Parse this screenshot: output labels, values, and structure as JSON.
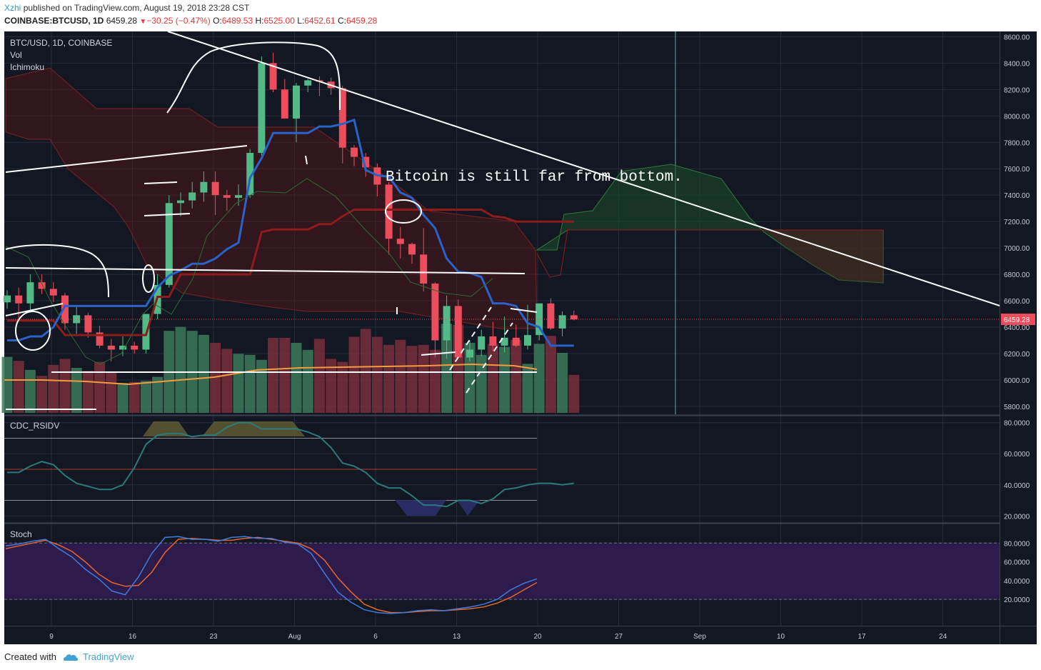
{
  "header": {
    "author": "Xzhi",
    "published_text": "published on TradingView.com, August 19, 2018 23:28 CST",
    "symbol": "COINBASE:BTCUSD, 1D",
    "price": "6459.28",
    "change": "−30.25 (−0.47%)",
    "ohlc": [
      {
        "label": "O:",
        "value": "6489.53"
      },
      {
        "label": "H:",
        "value": "6525.00"
      },
      {
        "label": "L:",
        "value": "6452.61"
      },
      {
        "label": "C:",
        "value": "6459.28"
      }
    ]
  },
  "legend": {
    "title": "BTC/USD, 1D, COINBASE",
    "vol": "Vol",
    "ichimoku": "Ichimoku",
    "rsi": "CDC_RSIDV",
    "stoch": "Stoch"
  },
  "annotation": "Bitcoin is still far from bottom.",
  "footer": {
    "created_with": "Created with",
    "brand": "TradingView"
  },
  "colors": {
    "bg": "#131722",
    "up": "#53b987",
    "down": "#eb4d5c",
    "tenkan": "#2962c9",
    "kijun": "#8e1c1c",
    "stoch_k": "#3d7be0",
    "stoch_d": "#e7652a",
    "stoch_band": "#2d1b4b",
    "rsi_line": "#2a7a7a"
  },
  "chart_data": {
    "type": "candlestick",
    "symbol": "BTC/USD",
    "interval": "1D",
    "price_ylim": [
      5740,
      8640
    ],
    "price_ticks": [
      "8600.00",
      "8400.00",
      "8200.00",
      "8000.00",
      "7800.00",
      "7600.00",
      "7400.00",
      "7200.00",
      "7000.00",
      "6800.00",
      "6600.00",
      "6400.00",
      "6200.00",
      "6000.00",
      "5800.00"
    ],
    "last_price": "6459.28",
    "x_ticks": [
      "9",
      "16",
      "23",
      "Aug",
      "6",
      "13",
      "20",
      "27",
      "Sep",
      "10",
      "17",
      "24"
    ],
    "ohlc": [
      [
        6588,
        6680,
        6540,
        6640
      ],
      [
        6640,
        6700,
        6470,
        6580
      ],
      [
        6580,
        6800,
        6510,
        6740
      ],
      [
        6740,
        6800,
        6650,
        6690
      ],
      [
        6690,
        6740,
        6590,
        6640
      ],
      [
        6640,
        6660,
        6380,
        6430
      ],
      [
        6430,
        6560,
        6350,
        6490
      ],
      [
        6490,
        6510,
        6320,
        6360
      ],
      [
        6360,
        6410,
        6240,
        6260
      ],
      [
        6260,
        6310,
        6140,
        6230
      ],
      [
        6230,
        6330,
        6180,
        6260
      ],
      [
        6260,
        6290,
        6200,
        6230
      ],
      [
        6230,
        6490,
        6200,
        6500
      ],
      [
        6500,
        6800,
        6460,
        6720
      ],
      [
        6720,
        7400,
        6700,
        7340
      ],
      [
        7340,
        7420,
        7240,
        7360
      ],
      [
        7360,
        7500,
        7300,
        7420
      ],
      [
        7420,
        7580,
        7350,
        7500
      ],
      [
        7500,
        7580,
        7250,
        7400
      ],
      [
        7400,
        7440,
        7280,
        7380
      ],
      [
        7380,
        7480,
        7320,
        7400
      ],
      [
        7400,
        7750,
        7380,
        7720
      ],
      [
        7720,
        8450,
        7700,
        8400
      ],
      [
        8400,
        8480,
        8180,
        8200
      ],
      [
        8200,
        8280,
        7980,
        7980
      ],
      [
        7980,
        8250,
        7800,
        8230
      ],
      [
        8230,
        8280,
        8180,
        8270
      ],
      [
        8270,
        8300,
        8150,
        8260
      ],
      [
        8260,
        8290,
        8160,
        8210
      ],
      [
        8210,
        8230,
        7640,
        7760
      ],
      [
        7760,
        7780,
        7620,
        7690
      ],
      [
        7690,
        7720,
        7540,
        7610
      ],
      [
        7610,
        7640,
        7390,
        7480
      ],
      [
        7480,
        7500,
        6950,
        7070
      ],
      [
        7070,
        7160,
        6920,
        7030
      ],
      [
        7030,
        7040,
        6880,
        6950
      ],
      [
        6950,
        7150,
        6670,
        6730
      ],
      [
        6730,
        6740,
        6170,
        6300
      ],
      [
        6300,
        6640,
        6160,
        6560
      ],
      [
        6560,
        6610,
        6160,
        6170
      ],
      [
        6170,
        6300,
        6140,
        6230
      ],
      [
        6230,
        6380,
        6180,
        6330
      ],
      [
        6330,
        6440,
        6220,
        6260
      ],
      [
        6260,
        6480,
        6210,
        6320
      ],
      [
        6320,
        6420,
        6250,
        6260
      ],
      [
        6260,
        6570,
        6230,
        6340
      ],
      [
        6340,
        6560,
        6300,
        6580
      ],
      [
        6580,
        6620,
        6380,
        6390
      ],
      [
        6390,
        6520,
        6330,
        6490
      ],
      [
        6490,
        6525,
        6452,
        6459
      ]
    ],
    "tenkan": [
      6300,
      6300,
      6330,
      6330,
      6400,
      6560,
      6560,
      6560,
      6560,
      6560,
      6560,
      6560,
      6560,
      6700,
      6790,
      6830,
      6880,
      6880,
      6920,
      6990,
      7040,
      7530,
      7680,
      7870,
      7870,
      7870,
      7870,
      7920,
      7920,
      7940,
      7970,
      7590,
      7550,
      7540,
      7420,
      7380,
      7250,
      7150,
      6920,
      6820,
      6810,
      6780,
      6580,
      6580,
      6560,
      6430,
      6400,
      6260,
      6260,
      6260
    ],
    "kijun": [
      6450,
      6450,
      6450,
      6450,
      6450,
      6340,
      6340,
      6340,
      6340,
      6340,
      6340,
      6340,
      6340,
      6630,
      6630,
      6800,
      6800,
      6800,
      6800,
      6800,
      6800,
      6800,
      7120,
      7140,
      7140,
      7140,
      7140,
      7180,
      7180,
      7240,
      7290,
      7290,
      7290,
      7290,
      7290,
      7290,
      7290,
      7290,
      7290,
      7290,
      7290,
      7290,
      7240,
      7230,
      7200,
      7200,
      7200,
      7200,
      7200,
      7200
    ],
    "volume": [
      56,
      52,
      43,
      37,
      48,
      54,
      45,
      42,
      51,
      40,
      30,
      31,
      32,
      36,
      82,
      86,
      82,
      78,
      70,
      64,
      59,
      58,
      53,
      75,
      75,
      70,
      63,
      74,
      54,
      51,
      76,
      84,
      76,
      68,
      73,
      67,
      68,
      63,
      89,
      88,
      70,
      58,
      69,
      66,
      73,
      49,
      69,
      77,
      60,
      38
    ],
    "rsi_ylim": [
      16,
      84
    ],
    "rsi_ticks": [
      "80.0000",
      "60.0000",
      "40.0000",
      "20.0000"
    ],
    "rsi_levels": [
      70,
      50,
      30
    ],
    "rsi": [
      48,
      48,
      52,
      55,
      53,
      46,
      41,
      39,
      37,
      37,
      40,
      51,
      66,
      72,
      73,
      73,
      71,
      72,
      72,
      77,
      80,
      80,
      76,
      76,
      76,
      76,
      74,
      71,
      64,
      54,
      52,
      48,
      41,
      38,
      38,
      33,
      27,
      27,
      26,
      30,
      30,
      28,
      31,
      37,
      38,
      40,
      41,
      41,
      40,
      41
    ],
    "stoch_ylim": [
      -8,
      100
    ],
    "stoch_ticks": [
      "80.0000",
      "60.0000",
      "40.0000",
      "20.0000"
    ],
    "stoch_levels": [
      80,
      20
    ],
    "stoch_k": [
      77,
      79,
      82,
      84,
      74,
      65,
      52,
      42,
      29,
      25,
      44,
      69,
      86,
      87,
      84,
      84,
      82,
      86,
      87,
      85,
      85,
      81,
      79,
      69,
      48,
      28,
      17,
      9,
      6,
      5,
      6,
      8,
      9,
      8,
      10,
      12,
      15,
      20,
      30,
      37,
      42
    ],
    "stoch_d": [
      74,
      77,
      80,
      83,
      78,
      71,
      60,
      47,
      38,
      34,
      35,
      49,
      70,
      84,
      85,
      84,
      83,
      83,
      85,
      86,
      84,
      82,
      80,
      74,
      62,
      43,
      28,
      15,
      9,
      6,
      6,
      7,
      8,
      8,
      9,
      10,
      12,
      16,
      22,
      30,
      38
    ]
  }
}
